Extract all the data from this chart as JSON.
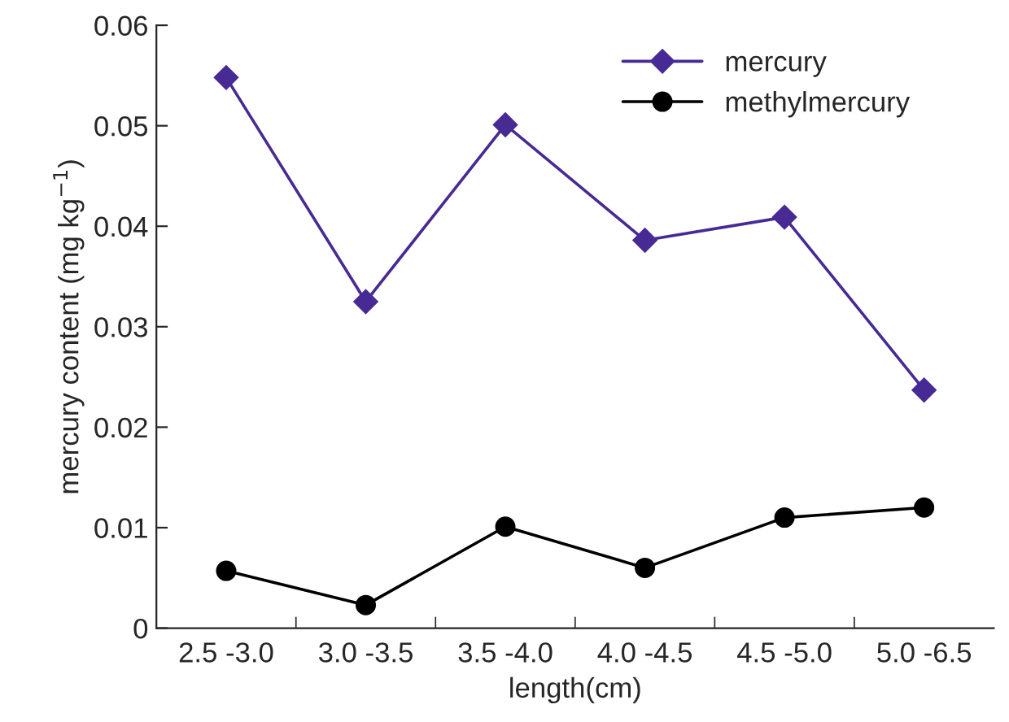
{
  "chart_data": {
    "type": "line",
    "xlabel": "length(cm)",
    "ylabel": "mercury content (mg kg$^{−1}$)",
    "categories": [
      "2.5 -3.0",
      "3.0 -3.5",
      "3.5 -4.0",
      "4.0 -4.5",
      "4.5 -5.0",
      "5.0 -6.5"
    ],
    "series": [
      {
        "name": "mercury",
        "color": "#482a94",
        "marker": "diamond",
        "values": [
          0.0548,
          0.0325,
          0.0501,
          0.0386,
          0.0409,
          0.0237
        ]
      },
      {
        "name": "methylmercury",
        "color": "#000000",
        "marker": "circle",
        "values": [
          0.0057,
          0.0023,
          0.0101,
          0.006,
          0.011,
          0.012
        ]
      }
    ],
    "ylim": [
      0,
      0.06
    ],
    "yticks": [
      {
        "value": 0,
        "label": "0"
      },
      0.01,
      0.02,
      0.03,
      0.04,
      0.05,
      0.06
    ],
    "legend": "top right",
    "grid": false
  }
}
